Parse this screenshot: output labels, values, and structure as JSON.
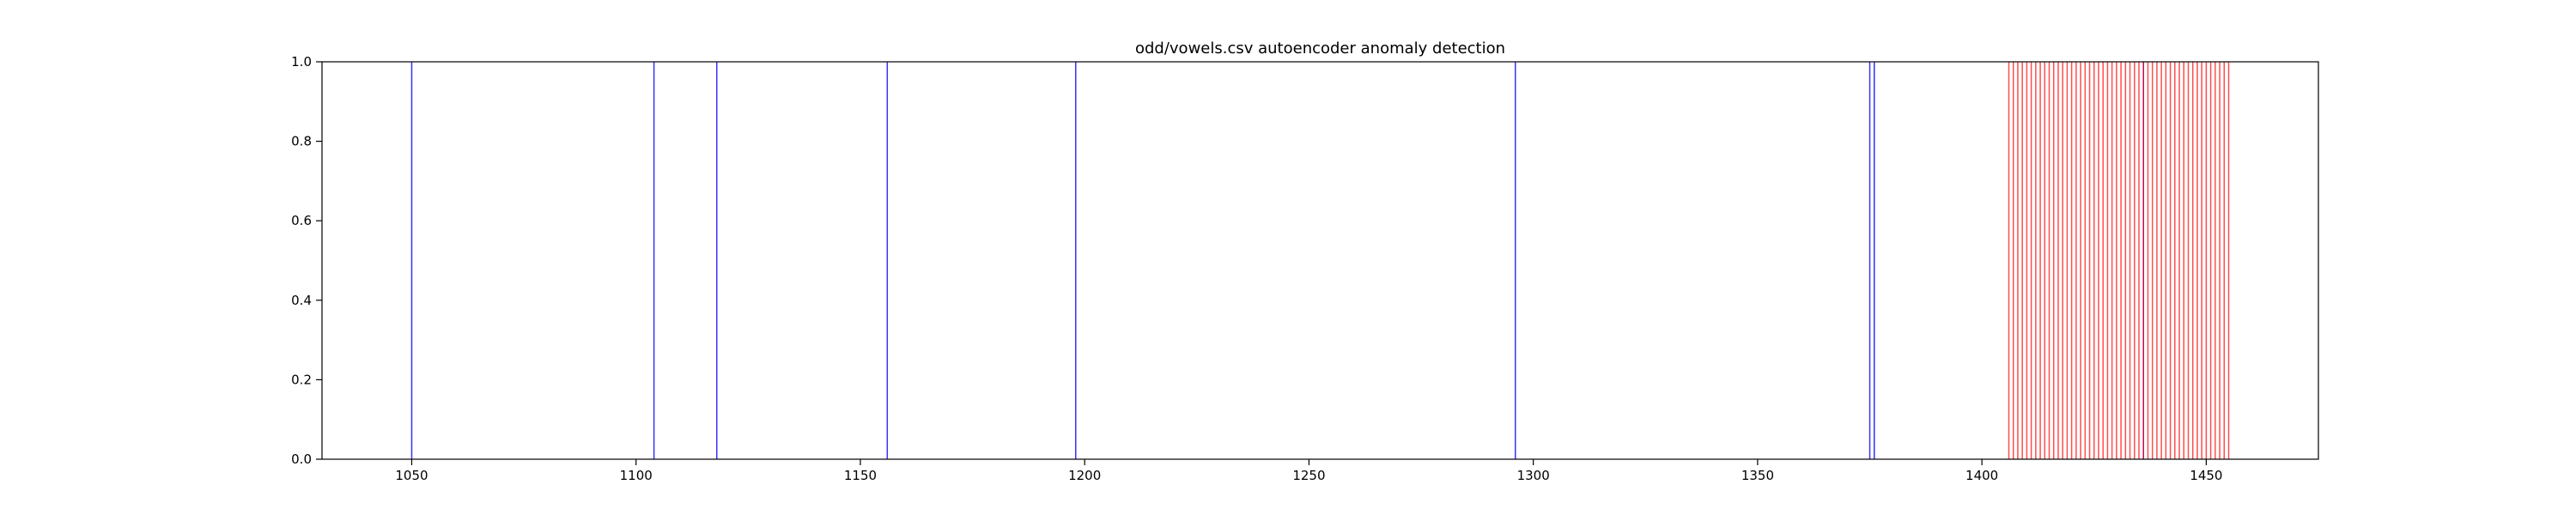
{
  "chart_data": {
    "type": "event-lines",
    "title": "odd/vowels.csv autoencoder anomaly detection",
    "xlabel": "",
    "ylabel": "",
    "xlim": [
      1030,
      1475
    ],
    "ylim": [
      0,
      1
    ],
    "x_ticks": [
      1050,
      1100,
      1150,
      1200,
      1250,
      1300,
      1350,
      1400,
      1450
    ],
    "y_ticks": [
      0.0,
      0.2,
      0.4,
      0.6,
      0.8,
      1.0
    ],
    "grid": false,
    "series": [
      {
        "color": "#0000ff",
        "x": [
          1050,
          1104,
          1118,
          1156,
          1198,
          1296,
          1375,
          1376,
          1436
        ]
      },
      {
        "color": "#ff0000",
        "x": [
          1406,
          1407,
          1408,
          1409,
          1410,
          1411,
          1412,
          1413,
          1414,
          1415,
          1416,
          1417,
          1418,
          1419,
          1420,
          1421,
          1422,
          1423,
          1424,
          1425,
          1426,
          1427,
          1428,
          1429,
          1430,
          1431,
          1432,
          1433,
          1434,
          1435,
          1436,
          1437,
          1438,
          1439,
          1440,
          1441,
          1442,
          1443,
          1444,
          1445,
          1446,
          1447,
          1448,
          1449,
          1450,
          1451,
          1452,
          1453,
          1454,
          1455
        ]
      }
    ]
  }
}
